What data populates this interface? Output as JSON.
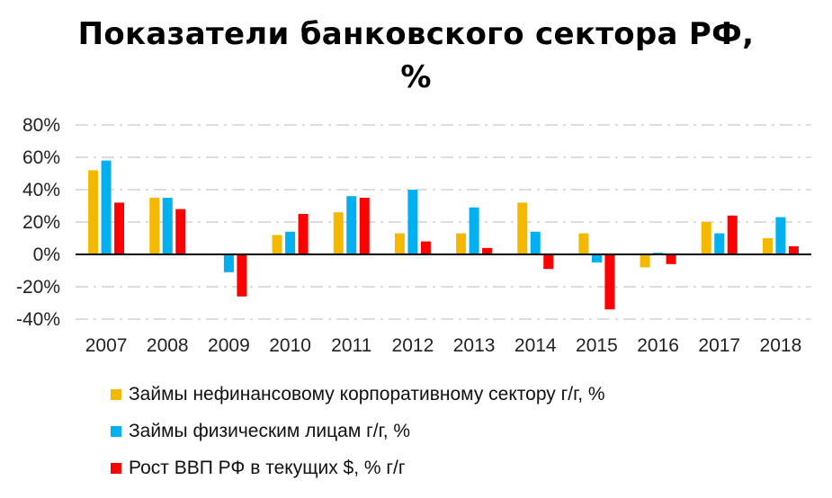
{
  "chart_data": {
    "type": "bar",
    "title": "Показатели банковского сектора РФ, %",
    "title_lines": [
      "Показатели банковского сектора РФ,",
      "%"
    ],
    "categories": [
      "2007",
      "2008",
      "2009",
      "2010",
      "2011",
      "2012",
      "2013",
      "2014",
      "2015",
      "2016",
      "2017",
      "2018"
    ],
    "series": [
      {
        "name": "Займы нефинансовому корпоративному сектору г/г, %",
        "color": "#f5b800",
        "values": [
          52,
          35,
          0,
          12,
          26,
          13,
          13,
          32,
          13,
          -8,
          20,
          10
        ]
      },
      {
        "name": "Займы физическим лицам г/г, %",
        "color": "#00b0f0",
        "values": [
          58,
          35,
          -11,
          14,
          36,
          40,
          29,
          14,
          -5,
          1,
          13,
          23
        ]
      },
      {
        "name": "Рост ВВП РФ в текущих $, % г/г",
        "color": "#ff0000",
        "values": [
          32,
          28,
          -26,
          25,
          35,
          8,
          4,
          -9,
          -34,
          -6,
          24,
          5
        ]
      }
    ],
    "ylim": [
      -40,
      80
    ],
    "yticks": [
      -40,
      -20,
      0,
      20,
      40,
      60,
      80
    ],
    "ytick_labels": [
      "-40%",
      "-20%",
      "0%",
      "20%",
      "40%",
      "60%",
      "80%"
    ],
    "xlabel": "",
    "ylabel": "",
    "grid": "horizontal dashed",
    "legend_position": "bottom"
  }
}
